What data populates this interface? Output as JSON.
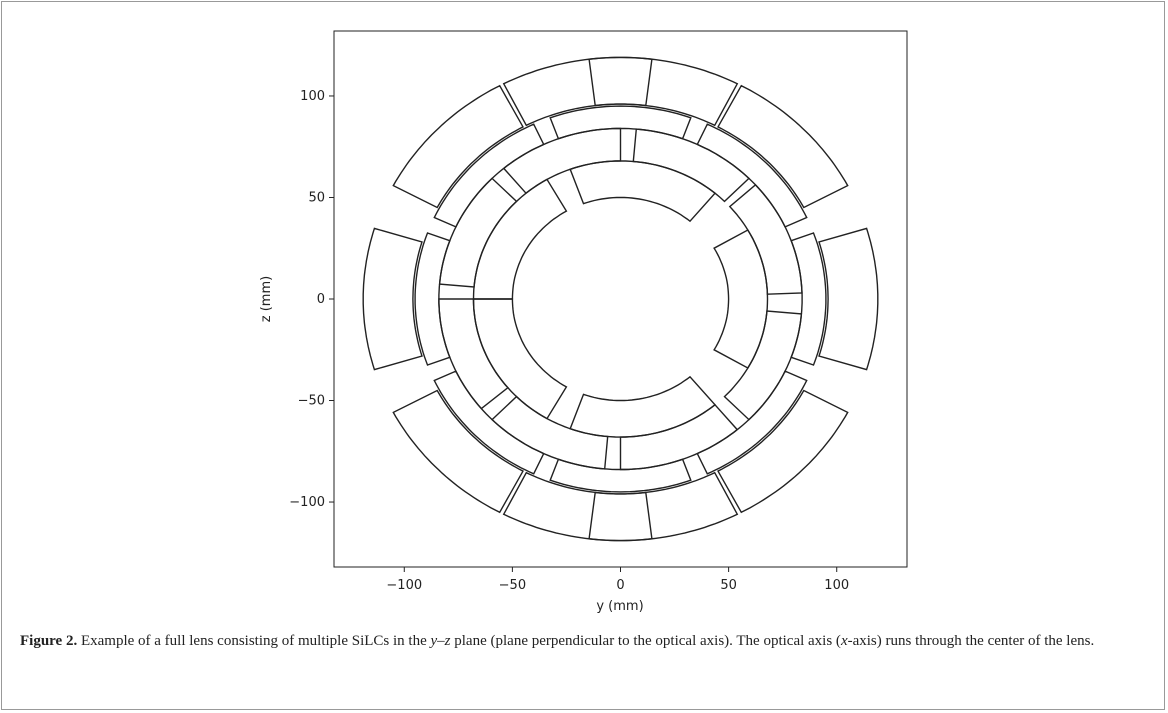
{
  "chart_data": {
    "type": "segments",
    "xlabel": "y (mm)",
    "ylabel": "z (mm)",
    "xlim": [
      -132.5,
      132.5
    ],
    "ylim": [
      -132,
      132
    ],
    "xticks": [
      {
        "value": -100,
        "label": "−100"
      },
      {
        "value": -50,
        "label": "−50"
      },
      0,
      50,
      100
    ],
    "yticks": [
      {
        "value": -100,
        "label": "−100"
      },
      {
        "value": -50,
        "label": "−50"
      },
      0,
      50,
      100
    ],
    "color": "#222222",
    "rings": [
      {
        "radii": [
          96,
          119
        ],
        "half_span": 17,
        "centers": [
          0,
          45,
          80,
          100,
          135,
          180,
          225,
          260,
          280,
          315
        ]
      },
      {
        "radii": [
          84,
          95
        ],
        "half_span": 20,
        "centers": [
          0,
          45,
          90,
          135,
          180,
          225,
          270,
          315
        ]
      },
      {
        "radii": [
          68,
          84
        ],
        "half_span": 20,
        "centers": [
          22,
          65,
          110,
          155,
          200,
          245,
          290,
          335
        ]
      },
      {
        "radii": [
          50,
          68
        ],
        "half_span": 30,
        "centers": [
          0,
          80,
          150,
          210,
          280
        ]
      }
    ]
  },
  "caption": {
    "label": "Figure 2.",
    "text_1": " Example of a full lens consisting of multiple SiLCs in the ",
    "plane": "y–z",
    "text_2": " plane (plane perpendicular to the optical axis). The optical axis (",
    "axis": "x",
    "text_3": "-axis) runs through the center of the lens."
  }
}
